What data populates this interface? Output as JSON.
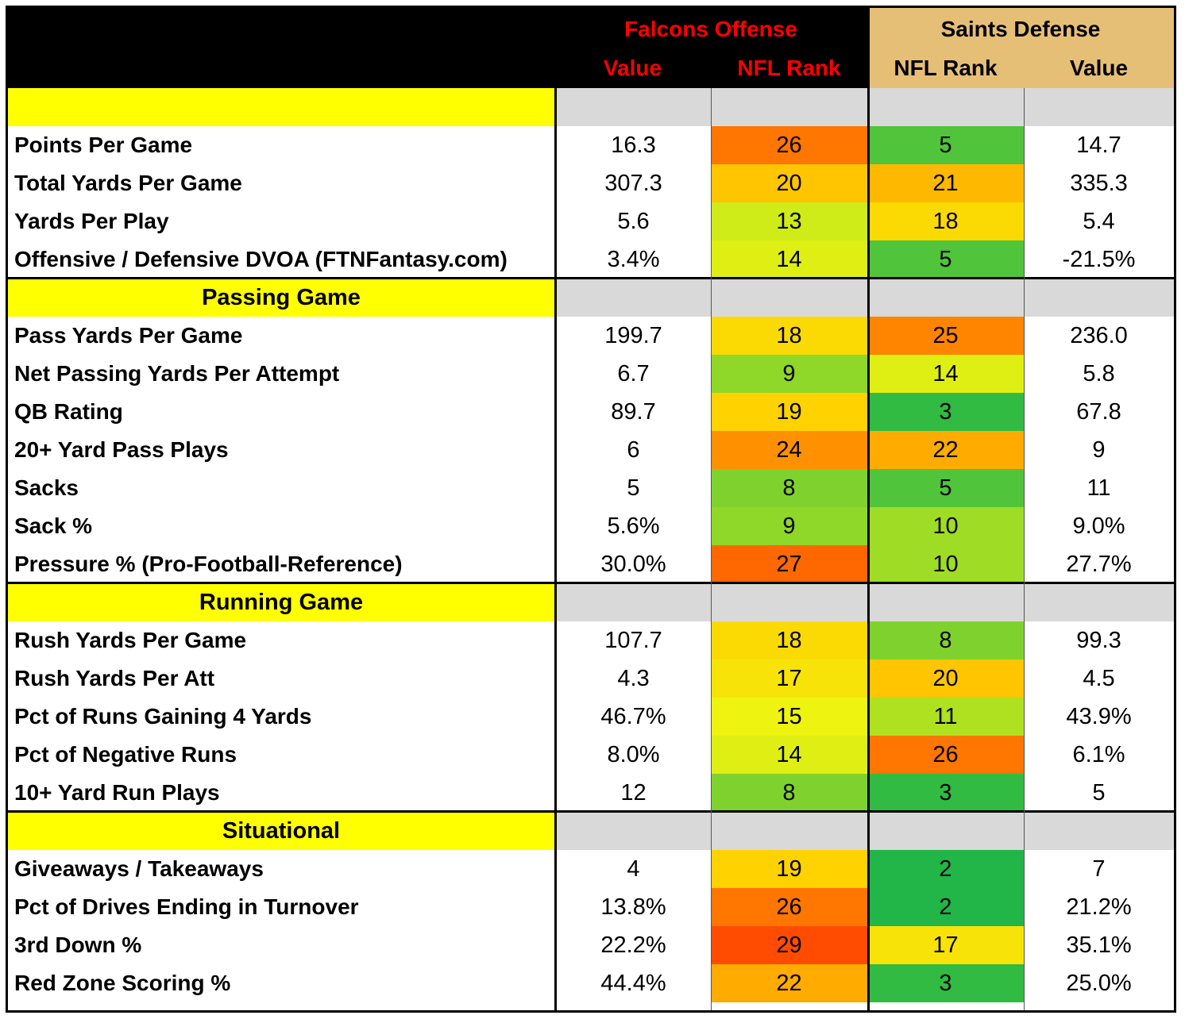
{
  "header": {
    "falcons_title": "Falcons Offense",
    "saints_title": "Saints Defense",
    "col_value": "Value",
    "col_rank": "NFL Rank",
    "col_rank_def": "NFL Rank",
    "col_value_def": "Value"
  },
  "colors": {
    "falcons_red": "#ff0000",
    "saints_gold": "#e6bf77",
    "section_yellow": "#ffff00",
    "section_gray": "#d9d9d9"
  },
  "chart_data": {
    "type": "table",
    "title": "Falcons Offense vs Saints Defense",
    "columns": [
      "Falcons Offense Value",
      "Falcons Offense NFL Rank",
      "Saints Defense NFL Rank",
      "Saints Defense Value"
    ],
    "sections": [
      {
        "name": "",
        "rows": [
          {
            "label": "Points Per Game",
            "off_value": "16.3",
            "off_rank": 26,
            "def_rank": 5,
            "def_value": "14.7"
          },
          {
            "label": "Total Yards Per Game",
            "off_value": "307.3",
            "off_rank": 20,
            "def_rank": 21,
            "def_value": "335.3"
          },
          {
            "label": "Yards Per Play",
            "off_value": "5.6",
            "off_rank": 13,
            "def_rank": 18,
            "def_value": "5.4"
          },
          {
            "label": "Offensive / Defensive DVOA (FTNFantasy.com)",
            "off_value": "3.4%",
            "off_rank": 14,
            "def_rank": 5,
            "def_value": "-21.5%"
          }
        ]
      },
      {
        "name": "Passing Game",
        "rows": [
          {
            "label": "Pass Yards Per Game",
            "off_value": "199.7",
            "off_rank": 18,
            "def_rank": 25,
            "def_value": "236.0"
          },
          {
            "label": "Net Passing Yards Per Attempt",
            "off_value": "6.7",
            "off_rank": 9,
            "def_rank": 14,
            "def_value": "5.8"
          },
          {
            "label": "QB Rating",
            "off_value": "89.7",
            "off_rank": 19,
            "def_rank": 3,
            "def_value": "67.8"
          },
          {
            "label": "20+ Yard Pass Plays",
            "off_value": "6",
            "off_rank": 24,
            "def_rank": 22,
            "def_value": "9"
          },
          {
            "label": "Sacks",
            "off_value": "5",
            "off_rank": 8,
            "def_rank": 5,
            "def_value": "11"
          },
          {
            "label": "Sack %",
            "off_value": "5.6%",
            "off_rank": 9,
            "def_rank": 10,
            "def_value": "9.0%"
          },
          {
            "label": "Pressure % (Pro-Football-Reference)",
            "off_value": "30.0%",
            "off_rank": 27,
            "def_rank": 10,
            "def_value": "27.7%"
          }
        ]
      },
      {
        "name": "Running Game",
        "rows": [
          {
            "label": "Rush Yards Per Game",
            "off_value": "107.7",
            "off_rank": 18,
            "def_rank": 8,
            "def_value": "99.3"
          },
          {
            "label": "Rush Yards Per Att",
            "off_value": "4.3",
            "off_rank": 17,
            "def_rank": 20,
            "def_value": "4.5"
          },
          {
            "label": "Pct of Runs Gaining 4 Yards",
            "off_value": "46.7%",
            "off_rank": 15,
            "def_rank": 11,
            "def_value": "43.9%"
          },
          {
            "label": "Pct of Negative Runs",
            "off_value": "8.0%",
            "off_rank": 14,
            "def_rank": 26,
            "def_value": "6.1%"
          },
          {
            "label": "10+ Yard Run Plays",
            "off_value": "12",
            "off_rank": 8,
            "def_rank": 3,
            "def_value": "5"
          }
        ]
      },
      {
        "name": "Situational",
        "rows": [
          {
            "label": "Giveaways / Takeaways",
            "off_value": "4",
            "off_rank": 19,
            "def_rank": 2,
            "def_value": "7"
          },
          {
            "label": "Pct of Drives Ending in Turnover",
            "off_value": "13.8%",
            "off_rank": 26,
            "def_rank": 2,
            "def_value": "21.2%"
          },
          {
            "label": "3rd Down %",
            "off_value": "22.2%",
            "off_rank": 29,
            "def_rank": 17,
            "def_value": "35.1%"
          },
          {
            "label": "Red Zone Scoring %",
            "off_value": "44.4%",
            "off_rank": 22,
            "def_rank": 3,
            "def_value": "25.0%"
          }
        ]
      }
    ]
  }
}
